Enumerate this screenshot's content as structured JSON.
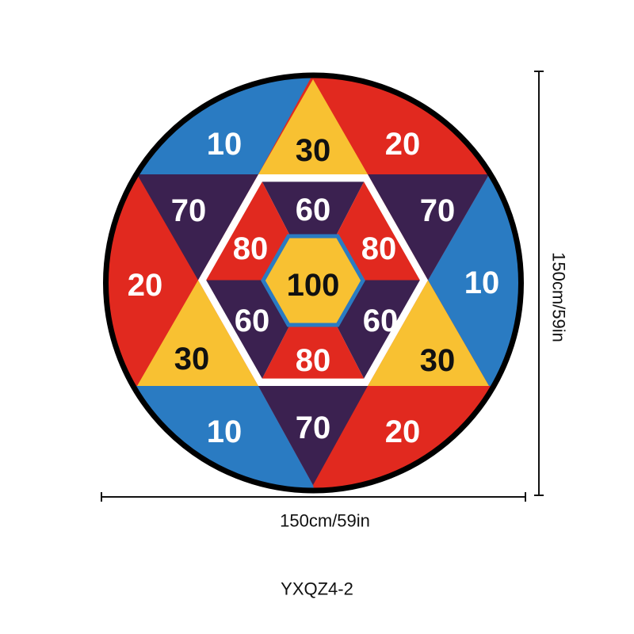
{
  "board": {
    "scores": [
      10,
      30,
      20,
      70,
      60,
      70,
      80,
      80,
      20,
      100,
      10,
      60,
      60,
      30,
      80,
      30,
      10,
      70,
      20
    ]
  },
  "dimensions": {
    "width": "150cm/59in",
    "height": "150cm/59in"
  },
  "model": "YXQZ4-2"
}
